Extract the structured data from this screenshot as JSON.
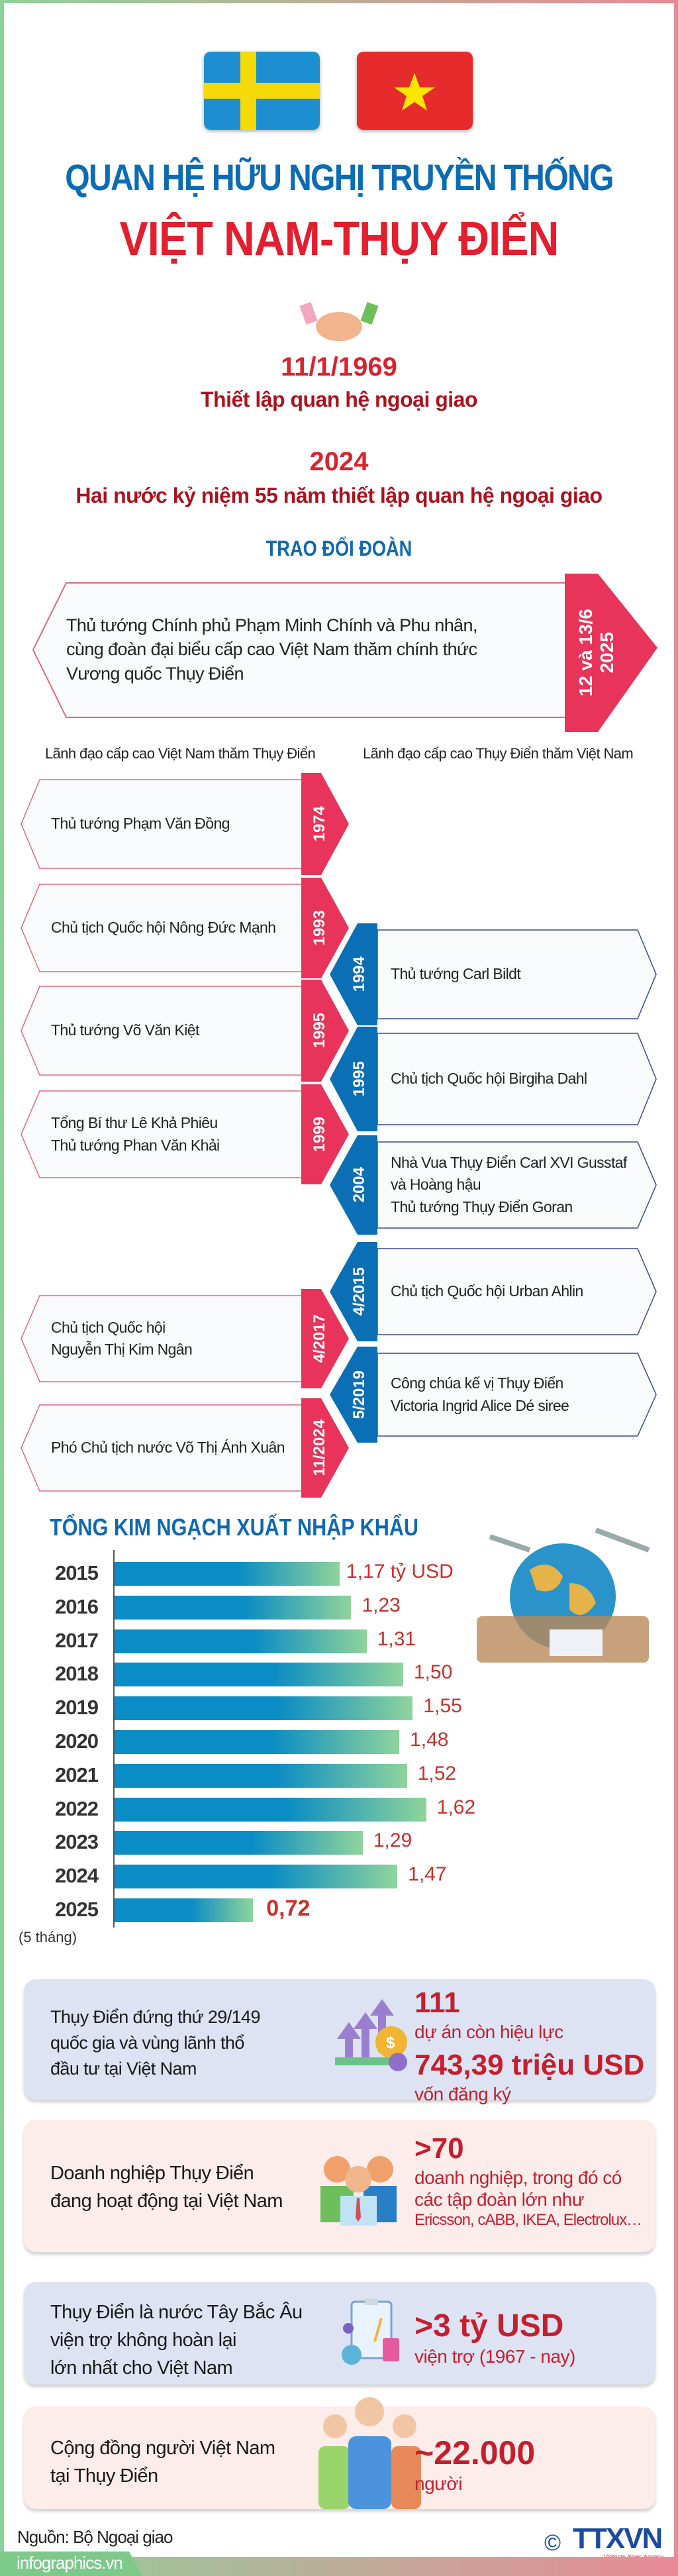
{
  "colors": {
    "blue": "#0b6cb4",
    "red": "#e31e2d",
    "tab_red": "#e8345a",
    "tab_blue": "#0a6fb5"
  },
  "flags": [
    "sweden-flag",
    "vietnam-flag"
  ],
  "header": {
    "title_line1": "QUAN HỆ HỮU NGHỊ TRUYỀN THỐNG",
    "title_line2": "VIỆT NAM-THỤY ĐIỂN",
    "date1": "11/1/1969",
    "date1_text": "Thiết lập quan hệ ngoại giao",
    "date2": "2024",
    "date2_text": "Hai nước kỷ niệm 55 năm thiết lập quan hệ ngoại giao"
  },
  "exchange": {
    "title": "TRAO ĐỔI ĐOÀN",
    "featured": {
      "lines": [
        "Thủ tướng Chính phủ Phạm Minh Chính và Phu nhân,",
        "cùng đoàn đại biểu cấp cao Việt Nam thăm chính thức",
        "Vương quốc Thụy Điển"
      ],
      "date_line1": "12 và 13/6",
      "date_line2": "2025"
    },
    "left_header": "Lãnh đạo cấp cao Việt Nam thăm Thụy Điển",
    "right_header": "Lãnh đạo cấp cao Thụy Điển thăm Việt Nam",
    "vn_to_se": [
      {
        "date": "1974",
        "lines": [
          "Thủ tướng Phạm Văn Đồng"
        ]
      },
      {
        "date": "1993",
        "lines": [
          "Chủ tịch Quốc hội Nông Đức Mạnh"
        ]
      },
      {
        "date": "1995",
        "lines": [
          "Thủ tướng Võ Văn Kiệt"
        ]
      },
      {
        "date": "1999",
        "lines": [
          "Tổng Bí thư Lê Khả Phiêu",
          "Thủ tướng Phan Văn Khải"
        ]
      },
      {
        "date": "4/2017",
        "lines": [
          "Chủ tịch Quốc hội",
          "Nguyễn Thị Kim Ngân"
        ]
      },
      {
        "date": "11/2024",
        "lines": [
          "Phó Chủ tịch nước Võ Thị Ánh Xuân"
        ]
      }
    ],
    "se_to_vn": [
      {
        "date": "1994",
        "lines": [
          "Thủ tướng Carl Bildt"
        ]
      },
      {
        "date": "1995",
        "lines": [
          "Chủ tịch Quốc hội Birgiha Dahl"
        ]
      },
      {
        "date": "2004",
        "lines": [
          "Nhà Vua Thụy Điển Carl XVI Gusstaf",
          "và Hoàng hậu",
          "Thủ tướng Thụy Điển Goran"
        ]
      },
      {
        "date": "4/2015",
        "lines": [
          "Chủ tịch Quốc hội Urban Ahlin"
        ]
      },
      {
        "date": "5/2019",
        "lines": [
          "Công chúa kế vị Thụy Điển",
          "Victoria Ingrid Alice Dé siree"
        ]
      }
    ]
  },
  "chart_data": {
    "type": "bar",
    "orientation": "horizontal",
    "title": "TỔNG KIM NGẠCH XUẤT NHẬP KHẨU",
    "categories": [
      "2015",
      "2016",
      "2017",
      "2018",
      "2019",
      "2020",
      "2021",
      "2022",
      "2023",
      "2024",
      "2025"
    ],
    "category_note": {
      "2025": "(5 tháng)"
    },
    "values": [
      1.17,
      1.23,
      1.31,
      1.5,
      1.55,
      1.48,
      1.52,
      1.62,
      1.29,
      1.47,
      0.72
    ],
    "labels": [
      "1,17 tỷ USD",
      "1,23",
      "1,31",
      "1,50",
      "1,55",
      "1,48",
      "1,52",
      "1,62",
      "1,29",
      "1,47",
      "0,72"
    ],
    "unit": "tỷ USD"
  },
  "stats": [
    {
      "left": [
        "Thụy Điển đứng thứ 29/149",
        "quốc gia và vùng lãnh thổ",
        "đầu tư tại Việt Nam"
      ],
      "value1": "111",
      "text1": "dự án còn hiệu lực",
      "value2": "743,39 triệu USD",
      "text2": "vốn đăng ký",
      "icon": "investment-growth-icon"
    },
    {
      "left": [
        "Doanh nghiệp Thụy Điển",
        "đang hoạt động tại Việt Nam"
      ],
      "value1": ">70",
      "text1": "doanh nghiệp, trong đó có",
      "text1b": "các tập đoàn lớn như",
      "text1c": "Ericsson, cABB, IKEA, Electrolux…",
      "icon": "business-people-icon"
    },
    {
      "left": [
        "Thụy Điển là nước Tây Bắc Âu",
        "viện trợ không hoàn lại",
        "lớn nhất cho Việt Nam"
      ],
      "value1": ">3 tỷ USD",
      "text1": "viện trợ (1967 - nay)",
      "icon": "aid-clipboard-icon"
    },
    {
      "left": [
        "Cộng đồng người Việt Nam",
        "tại Thụy Điển"
      ],
      "value1": "~22.000",
      "text1": "người",
      "icon": "community-people-icon"
    }
  ],
  "footer": {
    "source": "Nguồn: Bộ Ngoại giao",
    "site": "infographics.vn",
    "logo": "TTXVN",
    "logo_sub": "Vietnam News Agency",
    "copyright": "©"
  }
}
